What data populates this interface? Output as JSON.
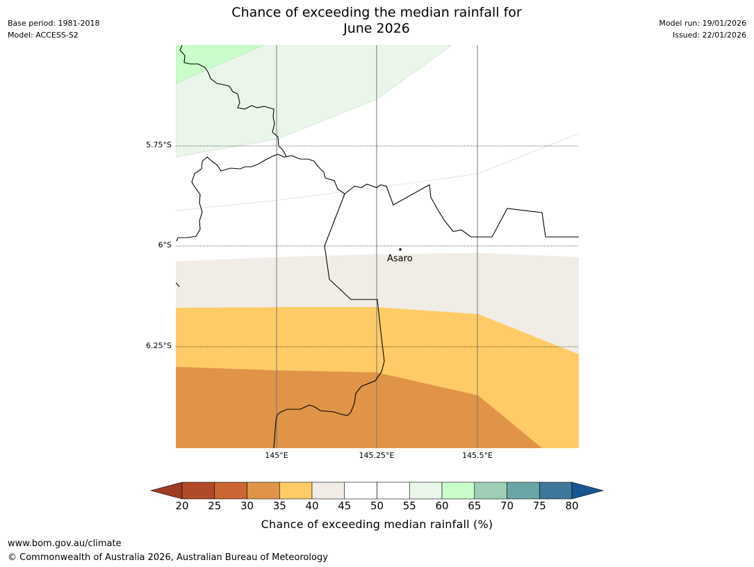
{
  "header": {
    "base_period": "Base period: 1981-2018",
    "model": "Model: ACCESS-S2",
    "model_run": "Model run: 19/01/2026",
    "issued": "Issued: 22/01/2026",
    "title_line1": "Chance of exceeding the median rainfall for",
    "title_line2": "June 2026"
  },
  "map": {
    "latitude_labels": [
      "5.75°S",
      "6°S",
      "6.25°S"
    ],
    "longitude_labels": [
      "145°E",
      "145.25°E",
      "145.5°E"
    ],
    "places": [
      {
        "name": "Asaro"
      }
    ],
    "colors": {
      "band_20_25": "#b04a26",
      "band_25_30": "#cc6633",
      "band_30_35": "#e09448",
      "band_35_40": "#fecb66",
      "band_40_45": "#f1ece6",
      "band_45_55": "#ffffff",
      "band_55_60": "#eaf6ea",
      "band_60_65": "#c9fdcb",
      "band_65_70": "#9ecfb6",
      "band_70_75": "#6aa6a6",
      "band_75_80": "#3e7799",
      "over_80": "#175691",
      "under_20": "#9e3b22"
    }
  },
  "colorbar": {
    "ticks": [
      "20",
      "25",
      "30",
      "35",
      "40",
      "45",
      "50",
      "55",
      "60",
      "65",
      "70",
      "75",
      "80"
    ],
    "label": "Chance of exceeding median rainfall (%)"
  },
  "footer": {
    "url": "www.bom.gov.au/climate",
    "copyright": "© Commonwealth of Australia 2026, Australian Bureau of Meteorology"
  }
}
